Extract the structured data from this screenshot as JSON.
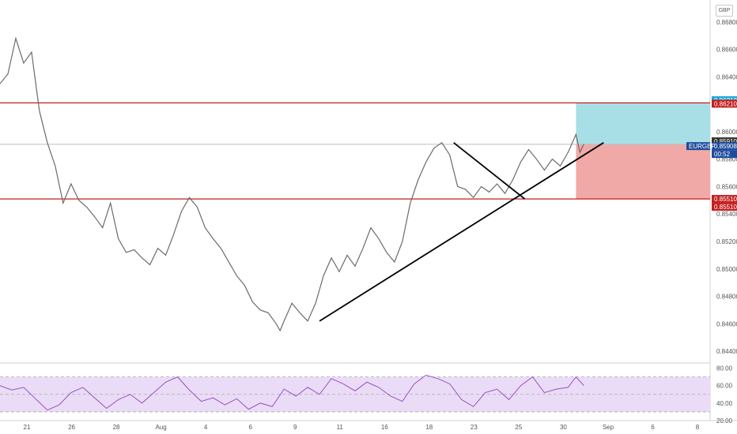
{
  "currency_label": "GBP",
  "colors": {
    "price_line": "#6b6b6b",
    "level_line": "#c41e1e",
    "level_badge": "#c41e1e",
    "target_zone": "#a8dfe6",
    "target_badge": "#21a8d8",
    "stop_zone": "#f1a9a7",
    "symbol_badge": "#1e4b9b",
    "current_badge": "#333333",
    "trendline": "#000000",
    "rsi_line": "#9b4fc4",
    "rsi_band": "#eadcf6"
  },
  "chart_data": {
    "type": "line",
    "symbol": "EURGBP",
    "x_ticks": [
      "21",
      "26",
      "28",
      "Aug",
      "4",
      "6",
      "9",
      "11",
      "16",
      "18",
      "23",
      "25",
      "30",
      "Sep",
      "6",
      "8"
    ],
    "y_ticks": [
      "0.86800",
      "0.86600",
      "0.86400",
      "0.86200",
      "0.86000",
      "0.85800",
      "0.85600",
      "0.85400",
      "0.85200",
      "0.85000",
      "0.84800",
      "0.84600",
      "0.84400"
    ],
    "ylim": [
      0.8432,
      0.8696
    ],
    "price_series": [
      {
        "x": 0,
        "y": 0.8635
      },
      {
        "x": 2,
        "y": 0.8642
      },
      {
        "x": 4,
        "y": 0.8668
      },
      {
        "x": 6,
        "y": 0.865
      },
      {
        "x": 8,
        "y": 0.8658
      },
      {
        "x": 10,
        "y": 0.8615
      },
      {
        "x": 12,
        "y": 0.8592
      },
      {
        "x": 14,
        "y": 0.8575
      },
      {
        "x": 16,
        "y": 0.8548
      },
      {
        "x": 18,
        "y": 0.8562
      },
      {
        "x": 20,
        "y": 0.855
      },
      {
        "x": 22,
        "y": 0.8545
      },
      {
        "x": 24,
        "y": 0.8538
      },
      {
        "x": 26,
        "y": 0.853
      },
      {
        "x": 28,
        "y": 0.8548
      },
      {
        "x": 30,
        "y": 0.8522
      },
      {
        "x": 32,
        "y": 0.8512
      },
      {
        "x": 34,
        "y": 0.8514
      },
      {
        "x": 36,
        "y": 0.8508
      },
      {
        "x": 38,
        "y": 0.8503
      },
      {
        "x": 40,
        "y": 0.8515
      },
      {
        "x": 42,
        "y": 0.851
      },
      {
        "x": 44,
        "y": 0.8525
      },
      {
        "x": 46,
        "y": 0.8542
      },
      {
        "x": 48,
        "y": 0.8552
      },
      {
        "x": 50,
        "y": 0.8545
      },
      {
        "x": 52,
        "y": 0.853
      },
      {
        "x": 54,
        "y": 0.8522
      },
      {
        "x": 56,
        "y": 0.8515
      },
      {
        "x": 58,
        "y": 0.8505
      },
      {
        "x": 60,
        "y": 0.8495
      },
      {
        "x": 62,
        "y": 0.8488
      },
      {
        "x": 64,
        "y": 0.8476
      },
      {
        "x": 66,
        "y": 0.847
      },
      {
        "x": 68,
        "y": 0.8468
      },
      {
        "x": 70,
        "y": 0.846
      },
      {
        "x": 71,
        "y": 0.8455
      },
      {
        "x": 72,
        "y": 0.8462
      },
      {
        "x": 74,
        "y": 0.8475
      },
      {
        "x": 76,
        "y": 0.8468
      },
      {
        "x": 78,
        "y": 0.8462
      },
      {
        "x": 80,
        "y": 0.8475
      },
      {
        "x": 82,
        "y": 0.8495
      },
      {
        "x": 84,
        "y": 0.8508
      },
      {
        "x": 86,
        "y": 0.8498
      },
      {
        "x": 88,
        "y": 0.851
      },
      {
        "x": 90,
        "y": 0.8502
      },
      {
        "x": 92,
        "y": 0.8515
      },
      {
        "x": 94,
        "y": 0.853
      },
      {
        "x": 96,
        "y": 0.8522
      },
      {
        "x": 98,
        "y": 0.8512
      },
      {
        "x": 100,
        "y": 0.8505
      },
      {
        "x": 102,
        "y": 0.852
      },
      {
        "x": 104,
        "y": 0.8548
      },
      {
        "x": 106,
        "y": 0.8565
      },
      {
        "x": 108,
        "y": 0.8578
      },
      {
        "x": 110,
        "y": 0.8588
      },
      {
        "x": 112,
        "y": 0.8592
      },
      {
        "x": 114,
        "y": 0.8583
      },
      {
        "x": 116,
        "y": 0.856
      },
      {
        "x": 118,
        "y": 0.8558
      },
      {
        "x": 120,
        "y": 0.8552
      },
      {
        "x": 122,
        "y": 0.856
      },
      {
        "x": 124,
        "y": 0.8556
      },
      {
        "x": 126,
        "y": 0.8562
      },
      {
        "x": 128,
        "y": 0.8555
      },
      {
        "x": 130,
        "y": 0.8565
      },
      {
        "x": 132,
        "y": 0.8578
      },
      {
        "x": 134,
        "y": 0.8587
      },
      {
        "x": 136,
        "y": 0.858
      },
      {
        "x": 138,
        "y": 0.8572
      },
      {
        "x": 140,
        "y": 0.858
      },
      {
        "x": 142,
        "y": 0.8575
      },
      {
        "x": 144,
        "y": 0.8585
      },
      {
        "x": 146,
        "y": 0.8598
      },
      {
        "x": 147,
        "y": 0.8585
      },
      {
        "x": 148,
        "y": 0.8591
      }
    ],
    "horizontal_levels": [
      0.8621,
      0.8551
    ],
    "current_price_line": 0.85908,
    "trendlines": [
      {
        "from": {
          "x": 81,
          "y": 0.8462
        },
        "to": {
          "x": 153,
          "y": 0.8592
        }
      },
      {
        "from": {
          "x": 115,
          "y": 0.8592
        },
        "to": {
          "x": 133,
          "y": 0.8551
        }
      }
    ],
    "position": {
      "entry": 0.8591,
      "target": 0.8621,
      "stop": 0.8551,
      "x_start": 146,
      "x_end": 180
    },
    "price_badges": [
      {
        "value": "0.86210",
        "kind": "target"
      },
      {
        "value": "0.86210",
        "kind": "level"
      },
      {
        "value": "0.85910",
        "kind": "current"
      },
      {
        "value": "0.85908",
        "kind": "symbol"
      },
      {
        "value": "00:52",
        "kind": "symbol"
      },
      {
        "value": "0.85510",
        "kind": "level"
      },
      {
        "value": "0.85510",
        "kind": "level"
      }
    ],
    "symbol_badge": "EURGBP",
    "x_range": [
      0,
      180
    ],
    "rsi": {
      "ylim": [
        20,
        85
      ],
      "y_ticks": [
        "80.00",
        "60.00",
        "40.00",
        "20.00"
      ],
      "band": [
        30,
        70
      ],
      "midline": 50,
      "series": [
        {
          "x": 0,
          "y": 60
        },
        {
          "x": 3,
          "y": 55
        },
        {
          "x": 6,
          "y": 58
        },
        {
          "x": 9,
          "y": 45
        },
        {
          "x": 12,
          "y": 32
        },
        {
          "x": 15,
          "y": 38
        },
        {
          "x": 18,
          "y": 52
        },
        {
          "x": 21,
          "y": 58
        },
        {
          "x": 24,
          "y": 46
        },
        {
          "x": 27,
          "y": 34
        },
        {
          "x": 30,
          "y": 44
        },
        {
          "x": 33,
          "y": 50
        },
        {
          "x": 36,
          "y": 40
        },
        {
          "x": 39,
          "y": 52
        },
        {
          "x": 42,
          "y": 64
        },
        {
          "x": 45,
          "y": 70
        },
        {
          "x": 48,
          "y": 55
        },
        {
          "x": 51,
          "y": 42
        },
        {
          "x": 54,
          "y": 46
        },
        {
          "x": 57,
          "y": 38
        },
        {
          "x": 60,
          "y": 45
        },
        {
          "x": 63,
          "y": 33
        },
        {
          "x": 66,
          "y": 40
        },
        {
          "x": 69,
          "y": 36
        },
        {
          "x": 72,
          "y": 56
        },
        {
          "x": 75,
          "y": 48
        },
        {
          "x": 78,
          "y": 58
        },
        {
          "x": 81,
          "y": 50
        },
        {
          "x": 84,
          "y": 68
        },
        {
          "x": 87,
          "y": 62
        },
        {
          "x": 90,
          "y": 54
        },
        {
          "x": 93,
          "y": 64
        },
        {
          "x": 96,
          "y": 58
        },
        {
          "x": 99,
          "y": 48
        },
        {
          "x": 102,
          "y": 42
        },
        {
          "x": 105,
          "y": 62
        },
        {
          "x": 108,
          "y": 72
        },
        {
          "x": 111,
          "y": 68
        },
        {
          "x": 114,
          "y": 62
        },
        {
          "x": 117,
          "y": 44
        },
        {
          "x": 120,
          "y": 36
        },
        {
          "x": 123,
          "y": 52
        },
        {
          "x": 126,
          "y": 56
        },
        {
          "x": 129,
          "y": 44
        },
        {
          "x": 132,
          "y": 60
        },
        {
          "x": 135,
          "y": 70
        },
        {
          "x": 138,
          "y": 52
        },
        {
          "x": 141,
          "y": 56
        },
        {
          "x": 144,
          "y": 58
        },
        {
          "x": 146,
          "y": 70
        },
        {
          "x": 148,
          "y": 60
        }
      ]
    }
  }
}
